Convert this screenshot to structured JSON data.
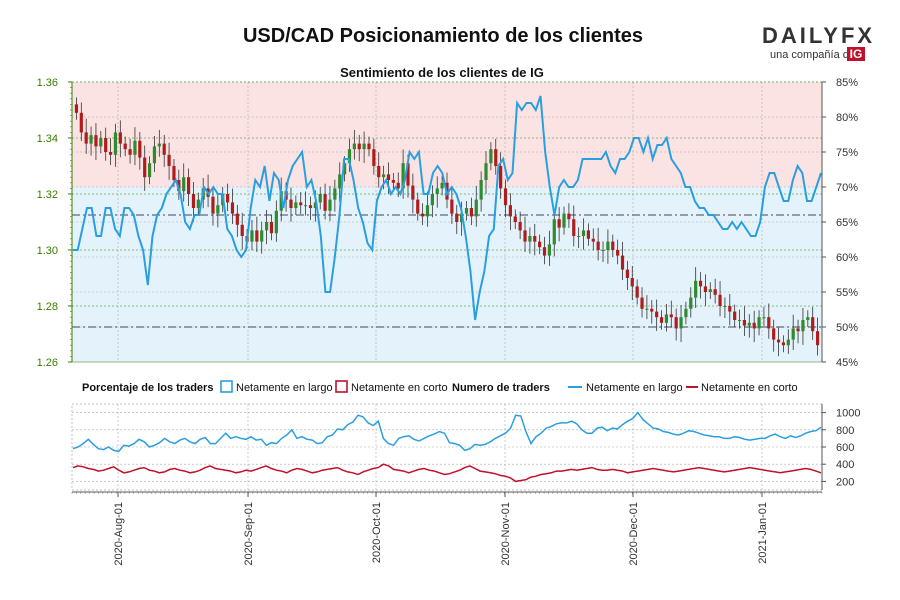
{
  "header": {
    "title": "USD/CAD Posicionamiento de los clientes",
    "logo_text": "DAILYFX",
    "logo_tagline": "una compañía de",
    "logo_ig": "IG"
  },
  "colors": {
    "long": "#2a9fe0",
    "short": "#c0102a",
    "price_up": "#2e8b2e",
    "price_down": "#b01c1c",
    "zone_short": "#fbe3e3",
    "zone_long": "#e4f2fb",
    "axis_left": "#3a7d00",
    "ref_line": "#666677"
  },
  "legend": {
    "pct_heading": "Porcentaje de los traders",
    "pct_long": "Netamente en largo",
    "pct_short": "Netamente en corto",
    "num_heading": "Numero de traders",
    "num_long": "Netamente en largo",
    "num_short": "Netamente en corto"
  },
  "chart_data": [
    {
      "type": "line",
      "title": "Sentimiento de los clientes de IG",
      "xlabel": "",
      "ylabel_left": "",
      "ylabel_right": "",
      "x_ticks": [
        "2020-Aug-01",
        "2020-Sep-01",
        "2020-Oct-01",
        "2020-Nov-01",
        "2020-Dec-01",
        "2021-Jan-01"
      ],
      "price_ylim": [
        1.26,
        1.36
      ],
      "price_ticks": [
        "1.26",
        "1.28",
        "1.30",
        "1.32",
        "1.34",
        "1.36"
      ],
      "pct_ylim": [
        45,
        85
      ],
      "pct_ticks": [
        "45%",
        "50%",
        "55%",
        "60%",
        "65%",
        "70%",
        "75%",
        "80%",
        "85%"
      ],
      "price_reference_lines": [
        1.3125,
        1.2725
      ],
      "price_ohlc_close": [
        1.349,
        1.342,
        1.338,
        1.341,
        1.337,
        1.34,
        1.335,
        1.334,
        1.342,
        1.338,
        1.336,
        1.334,
        1.339,
        1.333,
        1.326,
        1.331,
        1.337,
        1.338,
        1.334,
        1.33,
        1.325,
        1.321,
        1.326,
        1.32,
        1.315,
        1.318,
        1.322,
        1.319,
        1.313,
        1.316,
        1.32,
        1.317,
        1.313,
        1.309,
        1.305,
        1.303,
        1.307,
        1.303,
        1.307,
        1.31,
        1.306,
        1.314,
        1.321,
        1.318,
        1.315,
        1.317,
        1.316,
        1.316,
        1.315,
        1.317,
        1.32,
        1.314,
        1.318,
        1.322,
        1.327,
        1.331,
        1.336,
        1.338,
        1.336,
        1.338,
        1.336,
        1.33,
        1.326,
        1.327,
        1.325,
        1.324,
        1.322,
        1.331,
        1.323,
        1.318,
        1.313,
        1.312,
        1.316,
        1.32,
        1.322,
        1.324,
        1.318,
        1.313,
        1.31,
        1.313,
        1.315,
        1.312,
        1.318,
        1.325,
        1.331,
        1.336,
        1.33,
        1.322,
        1.316,
        1.312,
        1.31,
        1.307,
        1.303,
        1.305,
        1.303,
        1.301,
        1.298,
        1.302,
        1.311,
        1.308,
        1.313,
        1.311,
        1.305,
        1.305,
        1.307,
        1.304,
        1.303,
        1.3,
        1.3,
        1.303,
        1.3,
        1.298,
        1.293,
        1.29,
        1.287,
        1.283,
        1.279,
        1.279,
        1.278,
        1.276,
        1.274,
        1.277,
        1.276,
        1.272,
        1.276,
        1.279,
        1.283,
        1.289,
        1.287,
        1.285,
        1.286,
        1.284,
        1.28,
        1.28,
        1.278,
        1.275,
        1.275,
        1.273,
        1.274,
        1.272,
        1.276,
        1.276,
        1.272,
        1.268,
        1.267,
        1.266,
        1.268,
        1.272,
        1.271,
        1.275,
        1.276,
        1.271,
        1.266
      ],
      "pct_long": [
        61,
        61,
        64,
        67,
        67,
        63,
        63,
        67,
        67,
        64,
        63,
        67,
        67,
        66,
        63,
        61,
        56,
        63,
        66,
        67,
        69,
        70,
        71,
        69,
        65,
        64,
        66,
        66,
        70,
        69,
        70,
        69,
        69,
        64,
        63,
        61,
        60,
        61,
        67,
        71,
        70,
        73,
        68,
        72,
        71,
        67,
        71,
        73,
        74,
        75,
        70,
        71,
        68,
        63,
        55,
        55,
        60,
        66,
        74,
        74,
        71,
        67,
        65,
        62,
        61,
        68,
        70,
        71,
        69,
        70,
        69,
        71,
        75,
        74,
        75,
        69,
        69,
        72,
        73,
        72,
        69,
        70,
        69,
        67,
        63,
        58,
        51,
        55,
        58,
        63,
        64,
        73,
        74,
        71,
        72,
        82,
        81,
        82,
        82,
        81,
        83,
        75,
        70,
        66,
        70,
        71,
        70,
        70,
        71,
        74,
        74,
        74,
        74,
        74,
        75,
        73,
        72,
        74,
        74,
        75,
        77,
        77,
        75,
        77,
        74,
        76,
        76,
        77,
        74,
        73,
        72,
        70,
        70,
        68,
        67,
        67,
        66,
        66,
        65,
        64,
        64,
        65,
        64,
        65,
        64,
        63,
        63,
        65,
        70,
        72,
        72,
        70,
        68,
        68,
        71,
        73,
        72,
        68,
        68,
        70,
        72
      ],
      "num_long": [
        580,
        600,
        640,
        690,
        630,
        580,
        570,
        600,
        560,
        550,
        620,
        610,
        640,
        690,
        660,
        600,
        620,
        650,
        700,
        660,
        640,
        680,
        700,
        660,
        640,
        690,
        710,
        640,
        640,
        700,
        760,
        700,
        720,
        700,
        690,
        720,
        680,
        690,
        620,
        650,
        640,
        700,
        740,
        800,
        700,
        720,
        690,
        680,
        640,
        650,
        720,
        740,
        810,
        800,
        860,
        890,
        970,
        950,
        880,
        850,
        900,
        700,
        640,
        620,
        700,
        720,
        730,
        690,
        670,
        700,
        730,
        750,
        780,
        760,
        650,
        640,
        620,
        560,
        580,
        630,
        620,
        630,
        660,
        700,
        730,
        760,
        820,
        970,
        960,
        780,
        640,
        720,
        760,
        820,
        840,
        870,
        880,
        880,
        900,
        870,
        800,
        760,
        760,
        820,
        830,
        790,
        820,
        810,
        860,
        900,
        930,
        1000,
        920,
        870,
        820,
        810,
        780,
        770,
        750,
        740,
        760,
        790,
        780,
        760,
        740,
        730,
        720,
        720,
        700,
        700,
        720,
        710,
        690,
        680,
        690,
        700,
        700,
        730,
        750,
        720,
        700,
        730,
        710,
        730,
        760,
        780,
        790,
        830
      ],
      "num_short": [
        360,
        380,
        370,
        350,
        340,
        320,
        330,
        350,
        370,
        330,
        300,
        310,
        330,
        350,
        360,
        330,
        320,
        300,
        310,
        340,
        350,
        330,
        320,
        300,
        310,
        330,
        360,
        380,
        350,
        340,
        330,
        320,
        300,
        310,
        330,
        320,
        340,
        360,
        380,
        350,
        330,
        320,
        300,
        330,
        350,
        340,
        320,
        300,
        310,
        330,
        340,
        350,
        360,
        330,
        310,
        300,
        280,
        310,
        330,
        350,
        360,
        400,
        380,
        340,
        330,
        320,
        300,
        320,
        340,
        350,
        330,
        320,
        300,
        280,
        290,
        310,
        330,
        360,
        380,
        350,
        320,
        310,
        300,
        290,
        270,
        260,
        240,
        200,
        210,
        220,
        250,
        260,
        280,
        290,
        300,
        320,
        320,
        330,
        340,
        330,
        340,
        350,
        360,
        340,
        330,
        330,
        340,
        330,
        320,
        300,
        310,
        320,
        330,
        340,
        350,
        340,
        330,
        320,
        310,
        320,
        330,
        340,
        350,
        360,
        350,
        340,
        330,
        320,
        310,
        320,
        330,
        340,
        350,
        360,
        350,
        340,
        330,
        320,
        310,
        300,
        310,
        320,
        330,
        340,
        350,
        340,
        320,
        300
      ],
      "num_ylim": [
        100,
        1100
      ],
      "num_ticks": [
        "200",
        "400",
        "600",
        "800",
        "1000"
      ]
    }
  ]
}
